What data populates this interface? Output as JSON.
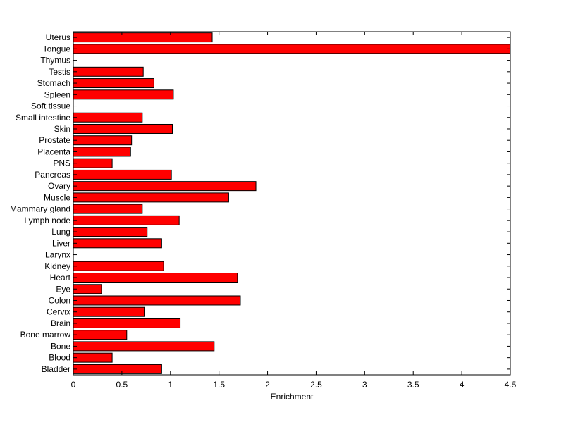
{
  "chart_data": {
    "type": "bar",
    "orientation": "horizontal",
    "categories": [
      "Uterus",
      "Tongue",
      "Thymus",
      "Testis",
      "Stomach",
      "Spleen",
      "Soft tissue",
      "Small intestine",
      "Skin",
      "Prostate",
      "Placenta",
      "PNS",
      "Pancreas",
      "Ovary",
      "Muscle",
      "Mammary gland",
      "Lymph node",
      "Lung",
      "Liver",
      "Larynx",
      "Kidney",
      "Heart",
      "Eye",
      "Colon",
      "Cervix",
      "Brain",
      "Bone marrow",
      "Bone",
      "Blood",
      "Bladder"
    ],
    "values": [
      1.43,
      4.5,
      0,
      0.72,
      0.83,
      1.03,
      0,
      0.71,
      1.02,
      0.6,
      0.59,
      0.4,
      1.01,
      1.88,
      1.6,
      0.71,
      1.09,
      0.76,
      0.91,
      0,
      0.93,
      1.69,
      0.29,
      1.72,
      0.73,
      1.1,
      0.55,
      1.45,
      0.4,
      0.91
    ],
    "title": "",
    "xlabel": "Enrichment",
    "ylabel": "",
    "xlim": [
      0,
      4.5
    ],
    "xticks": [
      0,
      0.5,
      1,
      1.5,
      2,
      2.5,
      3,
      3.5,
      4,
      4.5
    ],
    "xtick_labels": [
      "0",
      "0.5",
      "1",
      "1.5",
      "2",
      "2.5",
      "3",
      "3.5",
      "4",
      "4.5"
    ],
    "grid": false,
    "legend": "none",
    "colors": {
      "bar_fill": "#ff0000",
      "bar_edge": "#000000",
      "axes": "#000000",
      "background": "#ffffff"
    }
  }
}
